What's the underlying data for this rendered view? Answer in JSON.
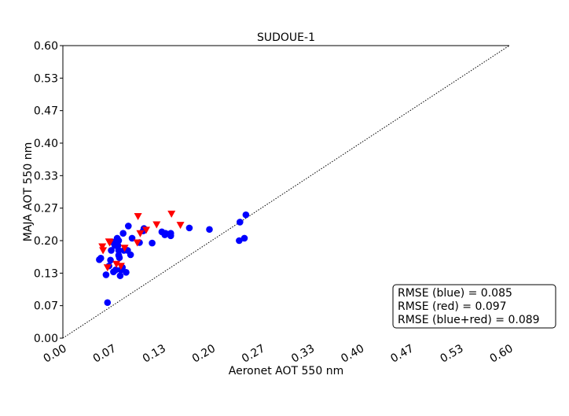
{
  "chart_data": {
    "type": "scatter",
    "title": "SUDOUE-1",
    "xlabel": "Aeronet AOT 550 nm",
    "ylabel": "MAJA AOT 550 nm",
    "xlim": [
      0.0,
      0.6
    ],
    "ylim": [
      0.0,
      0.6
    ],
    "xticks": [
      "0.00",
      "0.07",
      "0.13",
      "0.20",
      "0.27",
      "0.33",
      "0.40",
      "0.47",
      "0.53",
      "0.60"
    ],
    "yticks": [
      "0.00",
      "0.07",
      "0.13",
      "0.20",
      "0.27",
      "0.33",
      "0.40",
      "0.47",
      "0.53",
      "0.60"
    ],
    "reference_line": "1:1 dotted",
    "grid": false,
    "series": [
      {
        "marker": "circle",
        "color": "#0000ff",
        "points": [
          [
            0.049,
            0.161
          ],
          [
            0.051,
            0.164
          ],
          [
            0.058,
            0.13
          ],
          [
            0.06,
            0.073
          ],
          [
            0.062,
            0.148
          ],
          [
            0.064,
            0.16
          ],
          [
            0.065,
            0.18
          ],
          [
            0.067,
            0.197
          ],
          [
            0.068,
            0.136
          ],
          [
            0.07,
            0.19
          ],
          [
            0.071,
            0.14
          ],
          [
            0.072,
            0.2
          ],
          [
            0.073,
            0.205
          ],
          [
            0.074,
            0.19
          ],
          [
            0.075,
            0.2
          ],
          [
            0.075,
            0.17
          ],
          [
            0.075,
            0.18
          ],
          [
            0.076,
            0.165
          ],
          [
            0.077,
            0.128
          ],
          [
            0.078,
            0.14
          ],
          [
            0.08,
            0.145
          ],
          [
            0.081,
            0.215
          ],
          [
            0.082,
            0.18
          ],
          [
            0.085,
            0.135
          ],
          [
            0.087,
            0.18
          ],
          [
            0.088,
            0.23
          ],
          [
            0.091,
            0.171
          ],
          [
            0.093,
            0.205
          ],
          [
            0.103,
            0.196
          ],
          [
            0.108,
            0.22
          ],
          [
            0.109,
            0.225
          ],
          [
            0.12,
            0.195
          ],
          [
            0.133,
            0.218
          ],
          [
            0.137,
            0.212
          ],
          [
            0.138,
            0.215
          ],
          [
            0.145,
            0.21
          ],
          [
            0.145,
            0.215
          ],
          [
            0.17,
            0.226
          ],
          [
            0.197,
            0.223
          ],
          [
            0.237,
            0.2
          ],
          [
            0.238,
            0.238
          ],
          [
            0.244,
            0.205
          ],
          [
            0.246,
            0.253
          ]
        ]
      },
      {
        "marker": "triangle-down",
        "color": "#ff0000",
        "points": [
          [
            0.053,
            0.188
          ],
          [
            0.054,
            0.18
          ],
          [
            0.06,
            0.145
          ],
          [
            0.062,
            0.198
          ],
          [
            0.063,
            0.196
          ],
          [
            0.072,
            0.152
          ],
          [
            0.078,
            0.148
          ],
          [
            0.083,
            0.185
          ],
          [
            0.1,
            0.196
          ],
          [
            0.101,
            0.25
          ],
          [
            0.104,
            0.215
          ],
          [
            0.112,
            0.222
          ],
          [
            0.126,
            0.233
          ],
          [
            0.146,
            0.255
          ],
          [
            0.158,
            0.232
          ]
        ]
      }
    ],
    "annotation": {
      "lines": [
        "RMSE (blue) = 0.085",
        "RMSE (red) = 0.097",
        "RMSE (blue+red) = 0.089"
      ],
      "placement": "bottom-right"
    }
  }
}
